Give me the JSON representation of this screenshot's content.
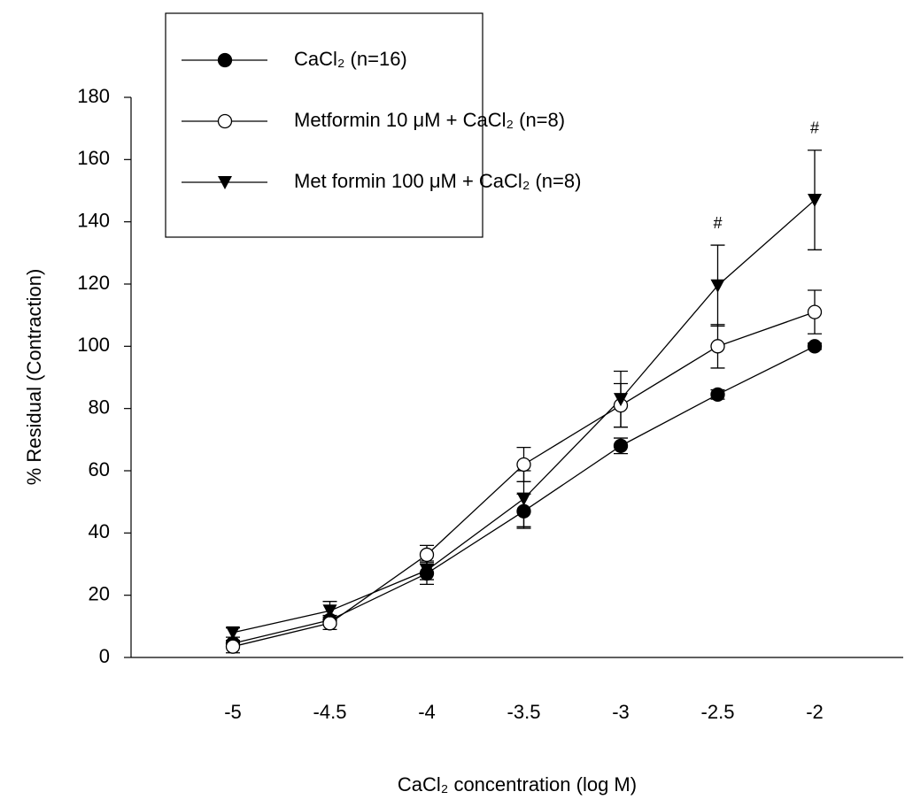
{
  "chart_data": {
    "type": "line",
    "x_label": "CaCl₂ concentration (log M)",
    "y_label": "% Residual (Contraction)",
    "x": [
      -5,
      -4.5,
      -4,
      -3.5,
      -3,
      -2.5,
      -2
    ],
    "xlim": [
      -5.5,
      -1.5
    ],
    "xticks": [
      -5,
      -4.5,
      -4,
      -3.5,
      -3,
      -2.5,
      -2
    ],
    "ylim": [
      0,
      180
    ],
    "yticks": [
      0,
      20,
      40,
      60,
      80,
      100,
      120,
      140,
      160,
      180
    ],
    "grid": false,
    "legend": "top-left",
    "series": [
      {
        "name": "CaCl₂ (n=16)",
        "color": "#000000",
        "marker": "circle-filled",
        "values": [
          4.5,
          12,
          27,
          47,
          68,
          84.5,
          100
        ],
        "errors": [
          1,
          1.5,
          3.5,
          5.5,
          2.5,
          1.5,
          1
        ]
      },
      {
        "name": "Metformin 10 μM + CaCl₂ (n=8)",
        "color": "#000000",
        "marker": "circle-open",
        "values": [
          3.5,
          11,
          33,
          62,
          81,
          100,
          111
        ],
        "errors": [
          2,
          2,
          3,
          5.5,
          7,
          7,
          7
        ]
      },
      {
        "name": "Met formin 100 μM + CaCl₂ (n=8)",
        "color": "#000000",
        "marker": "triangle-down",
        "values": [
          8,
          15,
          28,
          51,
          83,
          119.5,
          147
        ],
        "errors": [
          1.5,
          3,
          3,
          9,
          9,
          13,
          16
        ]
      }
    ],
    "annotations": [
      {
        "text": "#",
        "x": -2.5
      },
      {
        "text": "#",
        "x": -2
      }
    ]
  }
}
